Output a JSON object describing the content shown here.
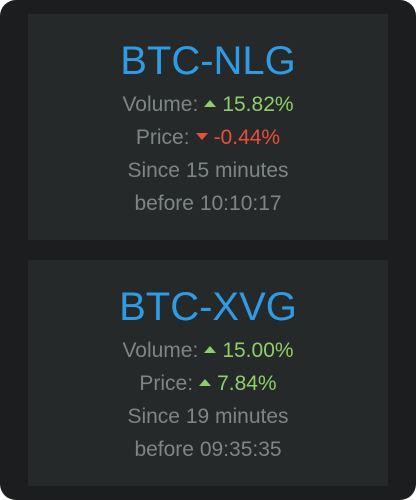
{
  "colors": {
    "window_bg": "#1b1d1e",
    "card_bg": "#26292a",
    "pair": "#2f9be4",
    "label": "#7f8485",
    "up": "#8dce6b",
    "down": "#ec4d3b"
  },
  "cards": [
    {
      "pair": "BTC-NLG",
      "volume_label": "Volume:",
      "volume_value": "15.82%",
      "volume_direction": "up",
      "price_label": "Price:",
      "price_value": "-0.44%",
      "price_direction": "down",
      "since": "Since 15 minutes",
      "before": "before 10:10:17"
    },
    {
      "pair": "BTC-XVG",
      "volume_label": "Volume:",
      "volume_value": "15.00%",
      "volume_direction": "up",
      "price_label": "Price:",
      "price_value": "7.84%",
      "price_direction": "up",
      "since": "Since 19 minutes",
      "before": "before 09:35:35"
    }
  ]
}
